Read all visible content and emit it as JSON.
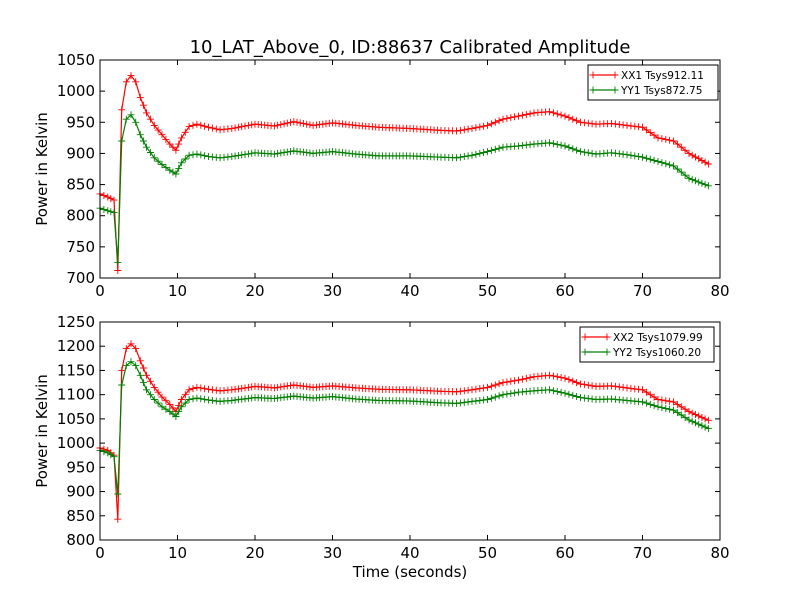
{
  "figure": {
    "title": "10_LAT_Above_0, ID:88637 Calibrated Amplitude"
  },
  "chart_data": [
    {
      "type": "line",
      "xlabel": "",
      "ylabel": "Power in Kelvin",
      "xlim": [
        0,
        80
      ],
      "ylim": [
        700,
        1050
      ],
      "xticks": [
        "0",
        "10",
        "20",
        "30",
        "40",
        "50",
        "60",
        "70",
        "80"
      ],
      "yticks": [
        "700",
        "750",
        "800",
        "850",
        "900",
        "950",
        "1000",
        "1050"
      ],
      "grid": false,
      "legend_position": "top-right",
      "marker": "plus",
      "x": [
        0,
        1,
        1.8,
        2.3,
        2.8,
        3.4,
        4,
        4.6,
        5.2,
        6,
        7,
        8,
        9,
        9.8,
        10.5,
        11.5,
        12.5,
        14,
        15.5,
        17,
        20,
        22.5,
        25,
        27.5,
        30,
        33,
        36,
        40,
        44,
        46,
        48,
        50,
        52,
        54,
        56,
        58,
        60,
        62,
        64,
        66,
        68,
        70,
        72,
        74,
        76,
        78.5
      ],
      "series": [
        {
          "name": "XX1 Tsys912.11",
          "color": "#ff0000",
          "values": [
            835,
            830,
            825,
            712,
            970,
            1015,
            1025,
            1015,
            990,
            965,
            945,
            930,
            915,
            905,
            925,
            943,
            947,
            942,
            938,
            940,
            947,
            944,
            951,
            945,
            949,
            945,
            942,
            940,
            937,
            936,
            940,
            945,
            955,
            960,
            965,
            967,
            960,
            950,
            947,
            948,
            945,
            942,
            925,
            920,
            900,
            883
          ]
        },
        {
          "name": "YY1 Tsys872.75",
          "color": "#008000",
          "values": [
            812,
            808,
            805,
            725,
            920,
            955,
            962,
            950,
            930,
            910,
            893,
            882,
            873,
            867,
            885,
            897,
            899,
            895,
            893,
            895,
            901,
            899,
            904,
            900,
            903,
            899,
            896,
            896,
            894,
            893,
            897,
            903,
            910,
            912,
            915,
            917,
            912,
            903,
            899,
            901,
            898,
            894,
            887,
            880,
            860,
            848
          ]
        }
      ]
    },
    {
      "type": "line",
      "xlabel": "Time (seconds)",
      "ylabel": "Power in Kelvin",
      "xlim": [
        0,
        80
      ],
      "ylim": [
        800,
        1250
      ],
      "xticks": [
        "0",
        "10",
        "20",
        "30",
        "40",
        "50",
        "60",
        "70",
        "80"
      ],
      "yticks": [
        "800",
        "850",
        "900",
        "950",
        "1000",
        "1050",
        "1100",
        "1150",
        "1200",
        "1250"
      ],
      "grid": false,
      "legend_position": "top-right",
      "marker": "plus",
      "x": [
        0,
        1,
        1.8,
        2.3,
        2.8,
        3.4,
        4,
        4.6,
        5.2,
        6,
        7,
        8,
        9,
        9.8,
        10.5,
        11.5,
        12.5,
        14,
        15.5,
        17,
        20,
        22.5,
        25,
        27.5,
        30,
        33,
        36,
        40,
        44,
        46,
        48,
        50,
        52,
        54,
        56,
        58,
        60,
        62,
        64,
        66,
        68,
        70,
        72,
        74,
        76,
        78.5
      ],
      "series": [
        {
          "name": "XX2 Tsys1079.99",
          "color": "#ff0000",
          "values": [
            990,
            985,
            975,
            843,
            1150,
            1195,
            1205,
            1195,
            1170,
            1140,
            1115,
            1095,
            1080,
            1065,
            1090,
            1110,
            1115,
            1111,
            1108,
            1110,
            1117,
            1114,
            1120,
            1115,
            1118,
            1114,
            1111,
            1110,
            1107,
            1106,
            1110,
            1115,
            1125,
            1130,
            1137,
            1140,
            1134,
            1122,
            1117,
            1118,
            1114,
            1110,
            1090,
            1085,
            1065,
            1047
          ]
        },
        {
          "name": "YY2 Tsys1060.20",
          "color": "#008000",
          "values": [
            985,
            980,
            972,
            895,
            1120,
            1160,
            1168,
            1160,
            1140,
            1110,
            1090,
            1075,
            1065,
            1055,
            1075,
            1090,
            1093,
            1089,
            1086,
            1088,
            1094,
            1092,
            1097,
            1093,
            1096,
            1091,
            1088,
            1087,
            1083,
            1082,
            1086,
            1090,
            1100,
            1105,
            1108,
            1110,
            1103,
            1094,
            1090,
            1091,
            1088,
            1085,
            1075,
            1068,
            1048,
            1030
          ]
        }
      ]
    }
  ]
}
